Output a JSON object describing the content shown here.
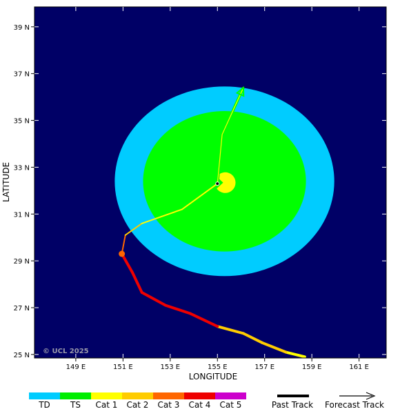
{
  "map": {
    "background_color": "#000066",
    "copyright": "© UCL 2025",
    "x_axis_title": "LONGITUDE",
    "y_axis_title": "LATITUDE",
    "lon_ticks": [
      "149 E",
      "151 E",
      "153 E",
      "155 E",
      "157 E",
      "159 E",
      "161 E"
    ],
    "lat_ticks": [
      "39 N",
      "37 N",
      "35 N",
      "33 N",
      "31 N",
      "29 N",
      "27 N",
      "25 N"
    ]
  },
  "wind_field": {
    "center": {
      "lon": 155.3,
      "lat": 32.4
    },
    "td_radius_deg": {
      "lon": 4.65,
      "lat": 4.05
    },
    "ts_radius_deg": {
      "lon": 3.45,
      "lat": 3.0
    },
    "td_color": "#00ccff",
    "ts_color": "#00ff00",
    "core_color": "#ffff00"
  },
  "past_track": [
    {
      "lon": 158.7,
      "lat": 24.9,
      "category": "TS"
    },
    {
      "lon": 157.9,
      "lat": 25.1,
      "category": "Cat 1"
    },
    {
      "lon": 156.9,
      "lat": 25.5,
      "category": "Cat 2"
    },
    {
      "lon": 156.1,
      "lat": 25.9,
      "category": "Cat 2"
    },
    {
      "lon": 155.0,
      "lat": 26.2,
      "category": "Cat 2"
    },
    {
      "lon": 153.85,
      "lat": 26.75,
      "category": "Cat 4"
    },
    {
      "lon": 152.8,
      "lat": 27.1,
      "category": "Cat 4"
    },
    {
      "lon": 151.8,
      "lat": 27.65,
      "category": "Cat 4"
    },
    {
      "lon": 151.4,
      "lat": 28.5,
      "category": "Cat 4"
    },
    {
      "lon": 150.95,
      "lat": 29.3,
      "category": "Cat 4"
    },
    {
      "lon": 151.1,
      "lat": 30.1,
      "category": "Cat 3"
    },
    {
      "lon": 151.8,
      "lat": 30.6,
      "category": "Cat 2"
    },
    {
      "lon": 153.5,
      "lat": 31.2,
      "category": "Cat 1"
    },
    {
      "lon": 155.0,
      "lat": 32.3,
      "category": "Cat 1"
    }
  ],
  "marked_point": {
    "lon": 150.95,
    "lat": 29.3,
    "color": "#ff6600"
  },
  "forecast_track": [
    {
      "lon": 155.0,
      "lat": 32.3
    },
    {
      "lon": 155.2,
      "lat": 34.4
    },
    {
      "lon": 156.1,
      "lat": 36.4
    }
  ],
  "legend": {
    "categories": [
      {
        "label": "TD",
        "color": "#00ccff"
      },
      {
        "label": "TS",
        "color": "#00ee00"
      },
      {
        "label": "Cat 1",
        "color": "#ffff00"
      },
      {
        "label": "Cat 2",
        "color": "#ffcc00"
      },
      {
        "label": "Cat 3",
        "color": "#ff6600"
      },
      {
        "label": "Cat 4",
        "color": "#ee0000"
      },
      {
        "label": "Cat 5",
        "color": "#cc00cc"
      }
    ],
    "past_track_label": "Past Track",
    "forecast_track_label": "Forecast Track"
  }
}
